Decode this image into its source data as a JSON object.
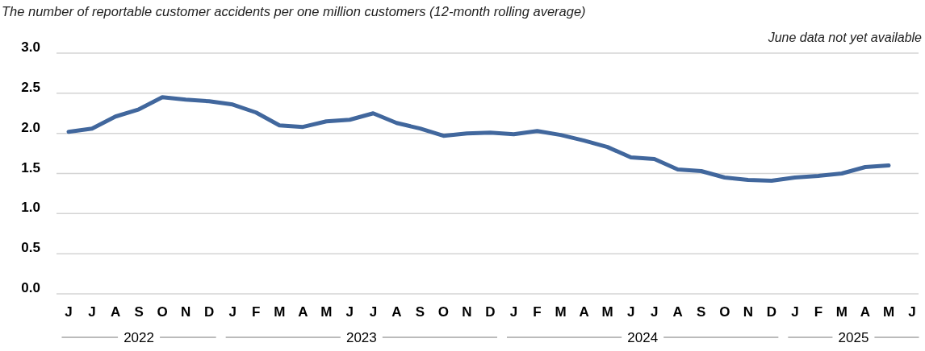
{
  "chart_data": {
    "type": "line",
    "title": "The number of reportable customer accidents per one million customers (12-month rolling average)",
    "categories": [
      "J",
      "J",
      "A",
      "S",
      "O",
      "N",
      "D",
      "J",
      "F",
      "M",
      "A",
      "M",
      "J",
      "J",
      "A",
      "S",
      "O",
      "N",
      "D",
      "J",
      "F",
      "M",
      "A",
      "M",
      "J",
      "J",
      "A",
      "S",
      "O",
      "N",
      "D",
      "J",
      "F",
      "M",
      "A",
      "M",
      "J"
    ],
    "series": [
      {
        "color": "#41679d",
        "values": [
          2.02,
          2.06,
          2.21,
          2.3,
          2.45,
          2.42,
          2.4,
          2.36,
          2.26,
          2.1,
          2.08,
          2.15,
          2.17,
          2.25,
          2.13,
          2.06,
          1.97,
          2.0,
          2.01,
          1.99,
          2.03,
          1.98,
          1.91,
          1.83,
          1.7,
          1.68,
          1.55,
          1.53,
          1.45,
          1.42,
          1.41,
          1.45,
          1.47,
          1.5,
          1.58,
          1.6,
          null
        ]
      }
    ],
    "ylim": [
      0,
      3
    ],
    "yticks": [
      {
        "value": 0,
        "label": "0.0"
      },
      0.5,
      {
        "value": 1,
        "label": "1.0"
      },
      1.5,
      {
        "value": 2,
        "label": "2.0"
      },
      2.5,
      {
        "value": 3,
        "label": "3.0"
      }
    ],
    "grid": "y",
    "marker": "none",
    "line_style": "solid",
    "annotations": [
      "June data not yet available",
      "2022",
      "2023",
      "2024",
      "2025"
    ]
  }
}
